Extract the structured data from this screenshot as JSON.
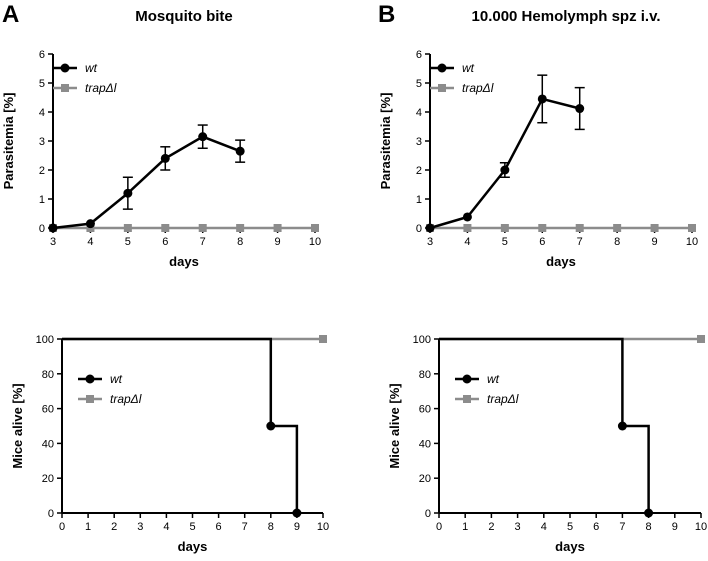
{
  "panels": [
    {
      "letter": "A",
      "title": "Mosquito bite"
    },
    {
      "letter": "B",
      "title": "10.000 Hemolymph spz  i.v."
    }
  ],
  "colors": {
    "wt": "#000000",
    "trap": "#8c8c8c",
    "axis": "#000000"
  },
  "chart_data": [
    {
      "type": "line",
      "panel": "A",
      "xlabel": "days",
      "ylabel": "Parasitemia [%]",
      "xlim": [
        3,
        10
      ],
      "ylim": [
        0,
        6
      ],
      "xticks": [
        3,
        4,
        5,
        6,
        7,
        8,
        9,
        10
      ],
      "yticks": [
        0,
        1,
        2,
        3,
        4,
        5,
        6
      ],
      "legend_position": "top-left",
      "series": [
        {
          "name": "wt",
          "color": "#000000",
          "marker": "circle",
          "x": [
            3,
            4,
            5,
            6,
            7,
            8
          ],
          "y": [
            0,
            0.15,
            1.2,
            2.4,
            3.15,
            2.65
          ],
          "err": [
            0,
            0,
            0.55,
            0.4,
            0.4,
            0.38
          ]
        },
        {
          "name": "trapΔl",
          "color": "#8c8c8c",
          "marker": "square",
          "x": [
            3,
            4,
            5,
            6,
            7,
            8,
            9,
            10
          ],
          "y": [
            0,
            0,
            0,
            0,
            0,
            0,
            0,
            0
          ]
        }
      ]
    },
    {
      "type": "line",
      "panel": "B",
      "xlabel": "days",
      "ylabel": "Parasitemia [%]",
      "xlim": [
        3,
        10
      ],
      "ylim": [
        0,
        6
      ],
      "xticks": [
        3,
        4,
        5,
        6,
        7,
        8,
        9,
        10
      ],
      "yticks": [
        0,
        1,
        2,
        3,
        4,
        5,
        6
      ],
      "legend_position": "top-left",
      "series": [
        {
          "name": "wt",
          "color": "#000000",
          "marker": "circle",
          "x": [
            3,
            4,
            5,
            6,
            7
          ],
          "y": [
            0,
            0.38,
            2.0,
            4.45,
            4.12
          ],
          "err": [
            0,
            0,
            0.25,
            0.82,
            0.72
          ]
        },
        {
          "name": "trapΔl",
          "color": "#8c8c8c",
          "marker": "square",
          "x": [
            3,
            4,
            5,
            6,
            7,
            8,
            9,
            10
          ],
          "y": [
            0,
            0,
            0,
            0,
            0,
            0,
            0,
            0
          ]
        }
      ]
    },
    {
      "type": "step",
      "panel": "A",
      "xlabel": "days",
      "ylabel": "Mice alive [%]",
      "xlim": [
        0,
        10
      ],
      "ylim": [
        0,
        100
      ],
      "xticks": [
        0,
        1,
        2,
        3,
        4,
        5,
        6,
        7,
        8,
        9,
        10
      ],
      "yticks": [
        0,
        20,
        40,
        60,
        80,
        100
      ],
      "legend_position": "center-left",
      "series": [
        {
          "name": "wt",
          "color": "#000000",
          "marker": "circle",
          "x": [
            0,
            8,
            9
          ],
          "y": [
            100,
            50,
            0
          ]
        },
        {
          "name": "trapΔl",
          "color": "#8c8c8c",
          "marker": "square",
          "x": [
            0,
            10
          ],
          "y": [
            100,
            100
          ]
        }
      ]
    },
    {
      "type": "step",
      "panel": "B",
      "xlabel": "days",
      "ylabel": "Mice alive [%]",
      "xlim": [
        0,
        10
      ],
      "ylim": [
        0,
        100
      ],
      "xticks": [
        0,
        1,
        2,
        3,
        4,
        5,
        6,
        7,
        8,
        9,
        10
      ],
      "yticks": [
        0,
        20,
        40,
        60,
        80,
        100
      ],
      "legend_position": "center-left",
      "series": [
        {
          "name": "wt",
          "color": "#000000",
          "marker": "circle",
          "x": [
            0,
            7,
            8
          ],
          "y": [
            100,
            50,
            0
          ]
        },
        {
          "name": "trapΔl",
          "color": "#8c8c8c",
          "marker": "square",
          "x": [
            0,
            10
          ],
          "y": [
            100,
            100
          ]
        }
      ]
    }
  ]
}
